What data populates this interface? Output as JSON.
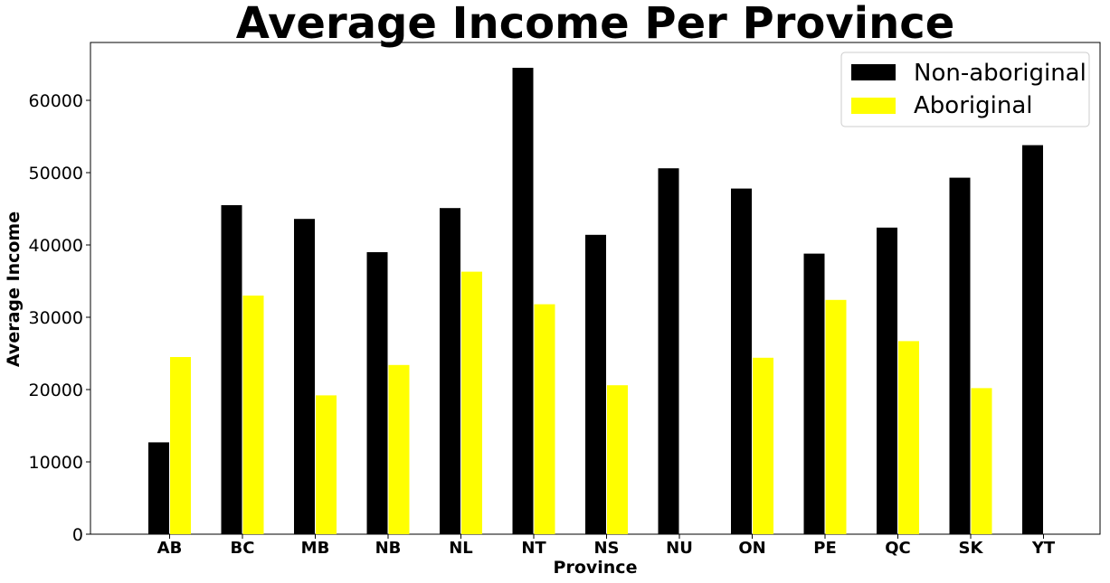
{
  "chart_data": {
    "type": "bar",
    "title": "Average Income Per Province",
    "xlabel": "Province",
    "ylabel": "Average Income",
    "categories": [
      "AB",
      "BC",
      "MB",
      "NB",
      "NL",
      "NT",
      "NS",
      "NU",
      "ON",
      "PE",
      "QC",
      "SK",
      "YT"
    ],
    "series": [
      {
        "name": "Non-aboriginal",
        "color": "#000000",
        "values": [
          12700,
          45500,
          43600,
          39000,
          45100,
          64500,
          41400,
          50600,
          47800,
          38800,
          42400,
          49300,
          53800
        ]
      },
      {
        "name": "Aboriginal",
        "color": "#ffff00",
        "values": [
          24500,
          33000,
          19200,
          23400,
          36300,
          31800,
          20600,
          null,
          24400,
          32400,
          26700,
          20200,
          null
        ]
      }
    ],
    "ylim": [
      0,
      68000
    ],
    "yticks": [
      0,
      10000,
      20000,
      30000,
      40000,
      50000,
      60000
    ],
    "grid": false,
    "legend_position": "top-right"
  }
}
